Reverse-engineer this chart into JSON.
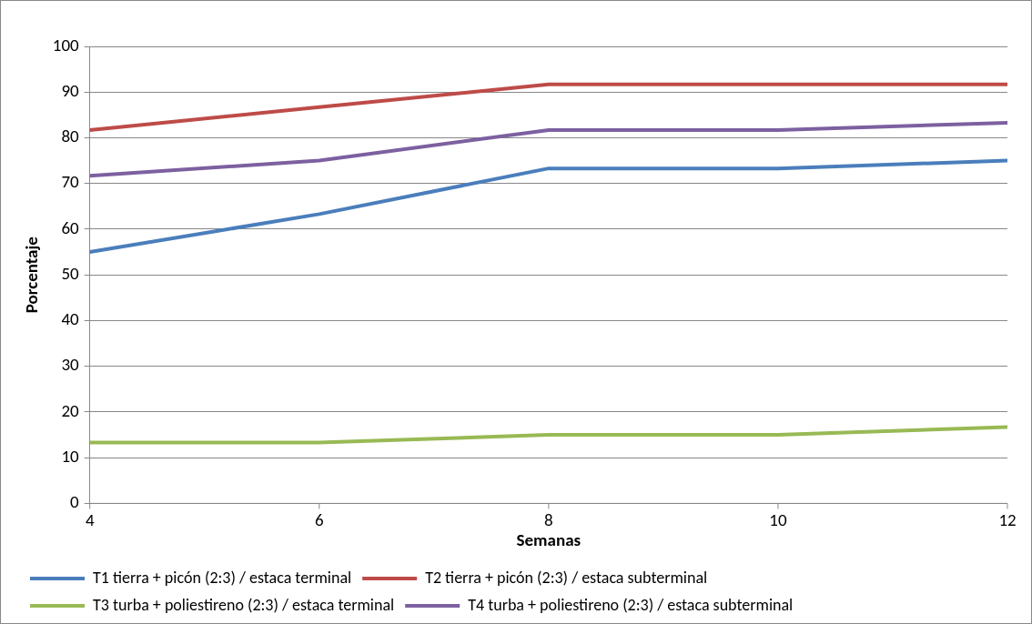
{
  "chart_data": {
    "type": "line",
    "xlabel": "Semanas",
    "ylabel": "Porcentaje",
    "x": [
      4,
      6,
      8,
      10,
      12
    ],
    "xlim": [
      4,
      12
    ],
    "xticks": [
      4,
      6,
      8,
      10,
      12
    ],
    "ylim": [
      0,
      100
    ],
    "yticks": [
      0,
      10,
      20,
      30,
      40,
      50,
      60,
      70,
      80,
      90,
      100
    ],
    "grid": "y",
    "legend": "bottom",
    "marker": "none",
    "line_style": "solid",
    "series": [
      {
        "name": "T1 tierra + picón (2:3) / estaca terminal",
        "color": "#4a7ebb",
        "values": [
          55,
          63.3,
          73.3,
          73.3,
          75
        ]
      },
      {
        "name": "T2 tierra + picón (2:3) / estaca subterminal",
        "color": "#be4b48",
        "values": [
          81.7,
          86.7,
          91.7,
          91.7,
          91.7
        ]
      },
      {
        "name": "T3 turba + poliestireno (2:3) / estaca terminal",
        "color": "#98b954",
        "values": [
          13.3,
          13.3,
          15,
          15,
          16.7
        ]
      },
      {
        "name": "T4 turba + poliestireno (2:3) / estaca subterminal",
        "color": "#7d60a0",
        "values": [
          71.7,
          75,
          81.7,
          81.7,
          83.3
        ]
      }
    ]
  }
}
